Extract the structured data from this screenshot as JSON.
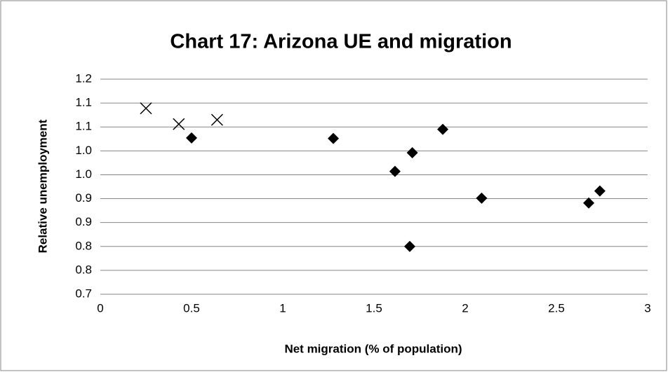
{
  "chart_data": {
    "type": "scatter",
    "title": "Chart 17: Arizona UE and migration",
    "x_label": "Net migration (% of population)",
    "y_label": "Relative unemployment",
    "xlim": [
      0,
      3
    ],
    "xticks": [
      0,
      0.5,
      1,
      1.5,
      2,
      2.5,
      3
    ],
    "ylim": [
      0.7,
      1.15
    ],
    "yticks": [
      0.7,
      {
        "value": 0.75,
        "label": "0.8"
      },
      0.8,
      {
        "value": 0.85,
        "label": "0.9"
      },
      0.9,
      {
        "value": 0.95,
        "label": "1.0"
      },
      {
        "value": 1.0,
        "label": "1.0"
      },
      {
        "value": 1.05,
        "label": "1.1"
      },
      1.1,
      {
        "value": 1.15,
        "label": "1.2"
      }
    ],
    "grid": true,
    "series": [
      {
        "marker": "x",
        "color": "#000000",
        "x": [
          0.25,
          0.43,
          0.64
        ],
        "values": [
          1.089,
          1.056,
          1.065
        ]
      },
      {
        "marker": "diamond",
        "color": "#000000",
        "x": [
          0.5,
          1.277,
          1.615,
          1.71,
          1.877,
          1.696,
          2.09,
          2.677,
          2.738
        ],
        "values": [
          1.027,
          1.026,
          0.957,
          0.996,
          1.045,
          0.8,
          0.901,
          0.891,
          0.916
        ]
      }
    ]
  }
}
